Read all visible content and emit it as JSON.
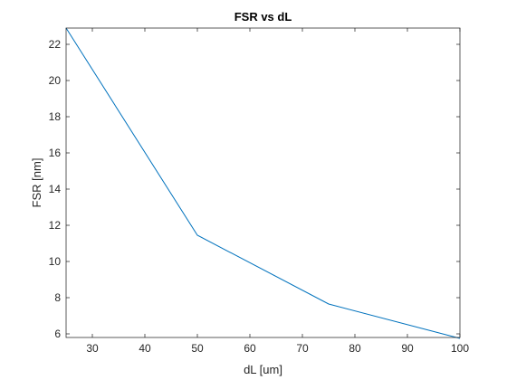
{
  "chart_data": {
    "type": "line",
    "title": "FSR vs dL",
    "xlabel": "dL [um]",
    "ylabel": "FSR [nm]",
    "xlim": [
      25,
      100
    ],
    "ylim": [
      5.8,
      22.9
    ],
    "xticks": [
      30,
      40,
      50,
      60,
      70,
      80,
      90,
      100
    ],
    "yticks": [
      6,
      8,
      10,
      12,
      14,
      16,
      18,
      20,
      22
    ],
    "grid": false,
    "legend": "none",
    "series": [
      {
        "color": "#0072BD",
        "x": [
          25,
          50,
          75,
          100
        ],
        "y": [
          22.9,
          11.45,
          7.65,
          5.75
        ]
      }
    ]
  }
}
